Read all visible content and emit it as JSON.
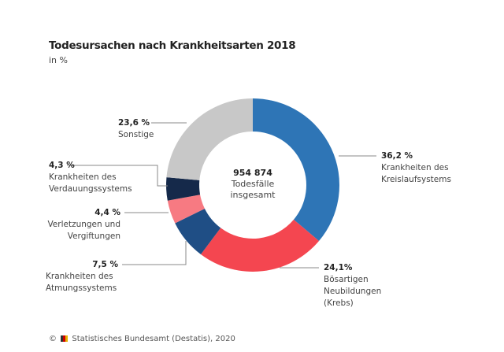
{
  "chart_data": {
    "type": "pie",
    "variant": "donut",
    "title": "Todesursachen nach Krankheitsarten 2018",
    "subtitle": "in %",
    "center_label": {
      "value": "954 874",
      "text": "Todesfälle insgesamt"
    },
    "slices": [
      {
        "value_label": "36,2 %",
        "value": 36.2,
        "label": "Krankheiten des Kreislaufsystems",
        "color": "#2e75b6"
      },
      {
        "value_label": "24,1%",
        "value": 24.1,
        "label": "Bösartigen Neubildungen (Krebs)",
        "color": "#f44650"
      },
      {
        "value_label": "7,5 %",
        "value": 7.5,
        "label": "Krankheiten des Atmungssystems",
        "color": "#1f4e85"
      },
      {
        "value_label": "4,4 %",
        "value": 4.4,
        "label": "Verletzungen und Vergiftungen",
        "color": "#f77a82"
      },
      {
        "value_label": "4,3 %",
        "value": 4.3,
        "label": "Krankheiten des Verdauungssystems",
        "color": "#15294a"
      },
      {
        "value_label": "23,6 %",
        "value": 23.6,
        "label": "Sonstige",
        "color": "#c8c8c8"
      }
    ],
    "source": "Statistisches Bundesamt (Destatis), 2020"
  }
}
